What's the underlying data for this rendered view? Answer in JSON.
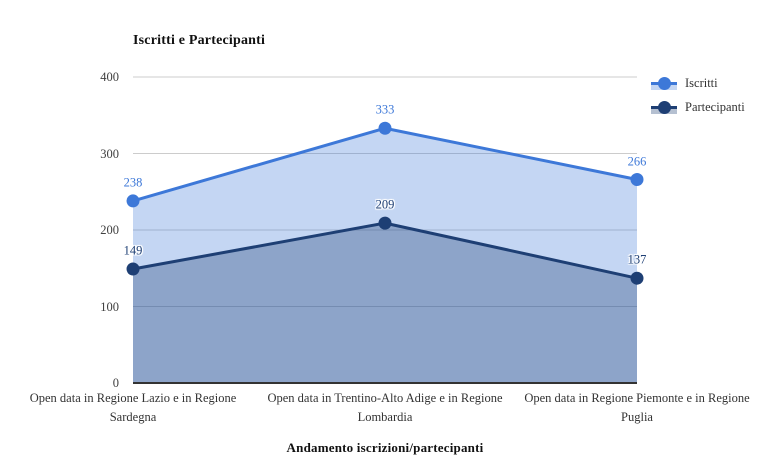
{
  "chart_data": {
    "type": "area",
    "title": "Iscritti e Partecipanti",
    "xlabel": "Andamento iscrizioni/partecipanti",
    "categories": [
      "Open data in Regione Lazio e in Regione Sardegna",
      "Open data in Trentino-Alto Adige e in Regione Lombardia",
      "Open data in Regione Piemonte e in Regione Puglia"
    ],
    "series": [
      {
        "name": "Iscritti",
        "values": [
          238,
          333,
          266
        ],
        "color": "#3D78D8",
        "fill_opacity": 0.3
      },
      {
        "name": "Partecipanti",
        "values": [
          149,
          209,
          137
        ],
        "color": "#1E3F74",
        "fill_opacity": 0.33
      }
    ],
    "ylim": [
      0,
      400
    ],
    "yticks": [
      0,
      100,
      200,
      300,
      400
    ],
    "grid": true,
    "legend_position": "top-right",
    "point_labels": true,
    "colors": {
      "gridline": "#cccccc",
      "baseline": "#333333",
      "tick_text": "#404040",
      "category_text": "#333333",
      "title_text": "#111111",
      "background": "#ffffff"
    }
  }
}
